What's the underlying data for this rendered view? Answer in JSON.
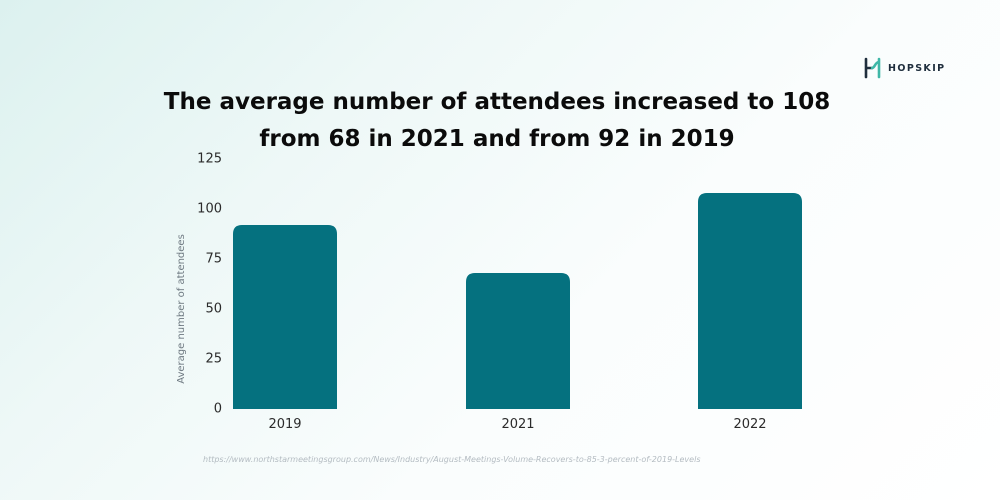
{
  "brand": {
    "name": "HOPSKIP",
    "color": "#3fb7a7"
  },
  "chart_data": {
    "type": "bar",
    "title": "The average number of attendees increased to 108 from 68 in 2021 and from 92 in 2019",
    "title_lines": [
      "The average number of attendees increased to 108",
      "from 68 in 2021 and from 92 in 2019"
    ],
    "categories": [
      "2019",
      "2021",
      "2022"
    ],
    "values": [
      92,
      68,
      108
    ],
    "xlabel": "",
    "ylabel": "Average number of attendees",
    "ylim": [
      0,
      125
    ],
    "yticks": [
      0,
      25,
      50,
      75,
      100,
      125
    ],
    "grid": false,
    "bar_color": "#05717f"
  },
  "source": "https://www.northstarmeetingsgroup.com/News/Industry/August-Meetings-Volume-Recovers-to-85-3-percent-of-2019-Levels"
}
